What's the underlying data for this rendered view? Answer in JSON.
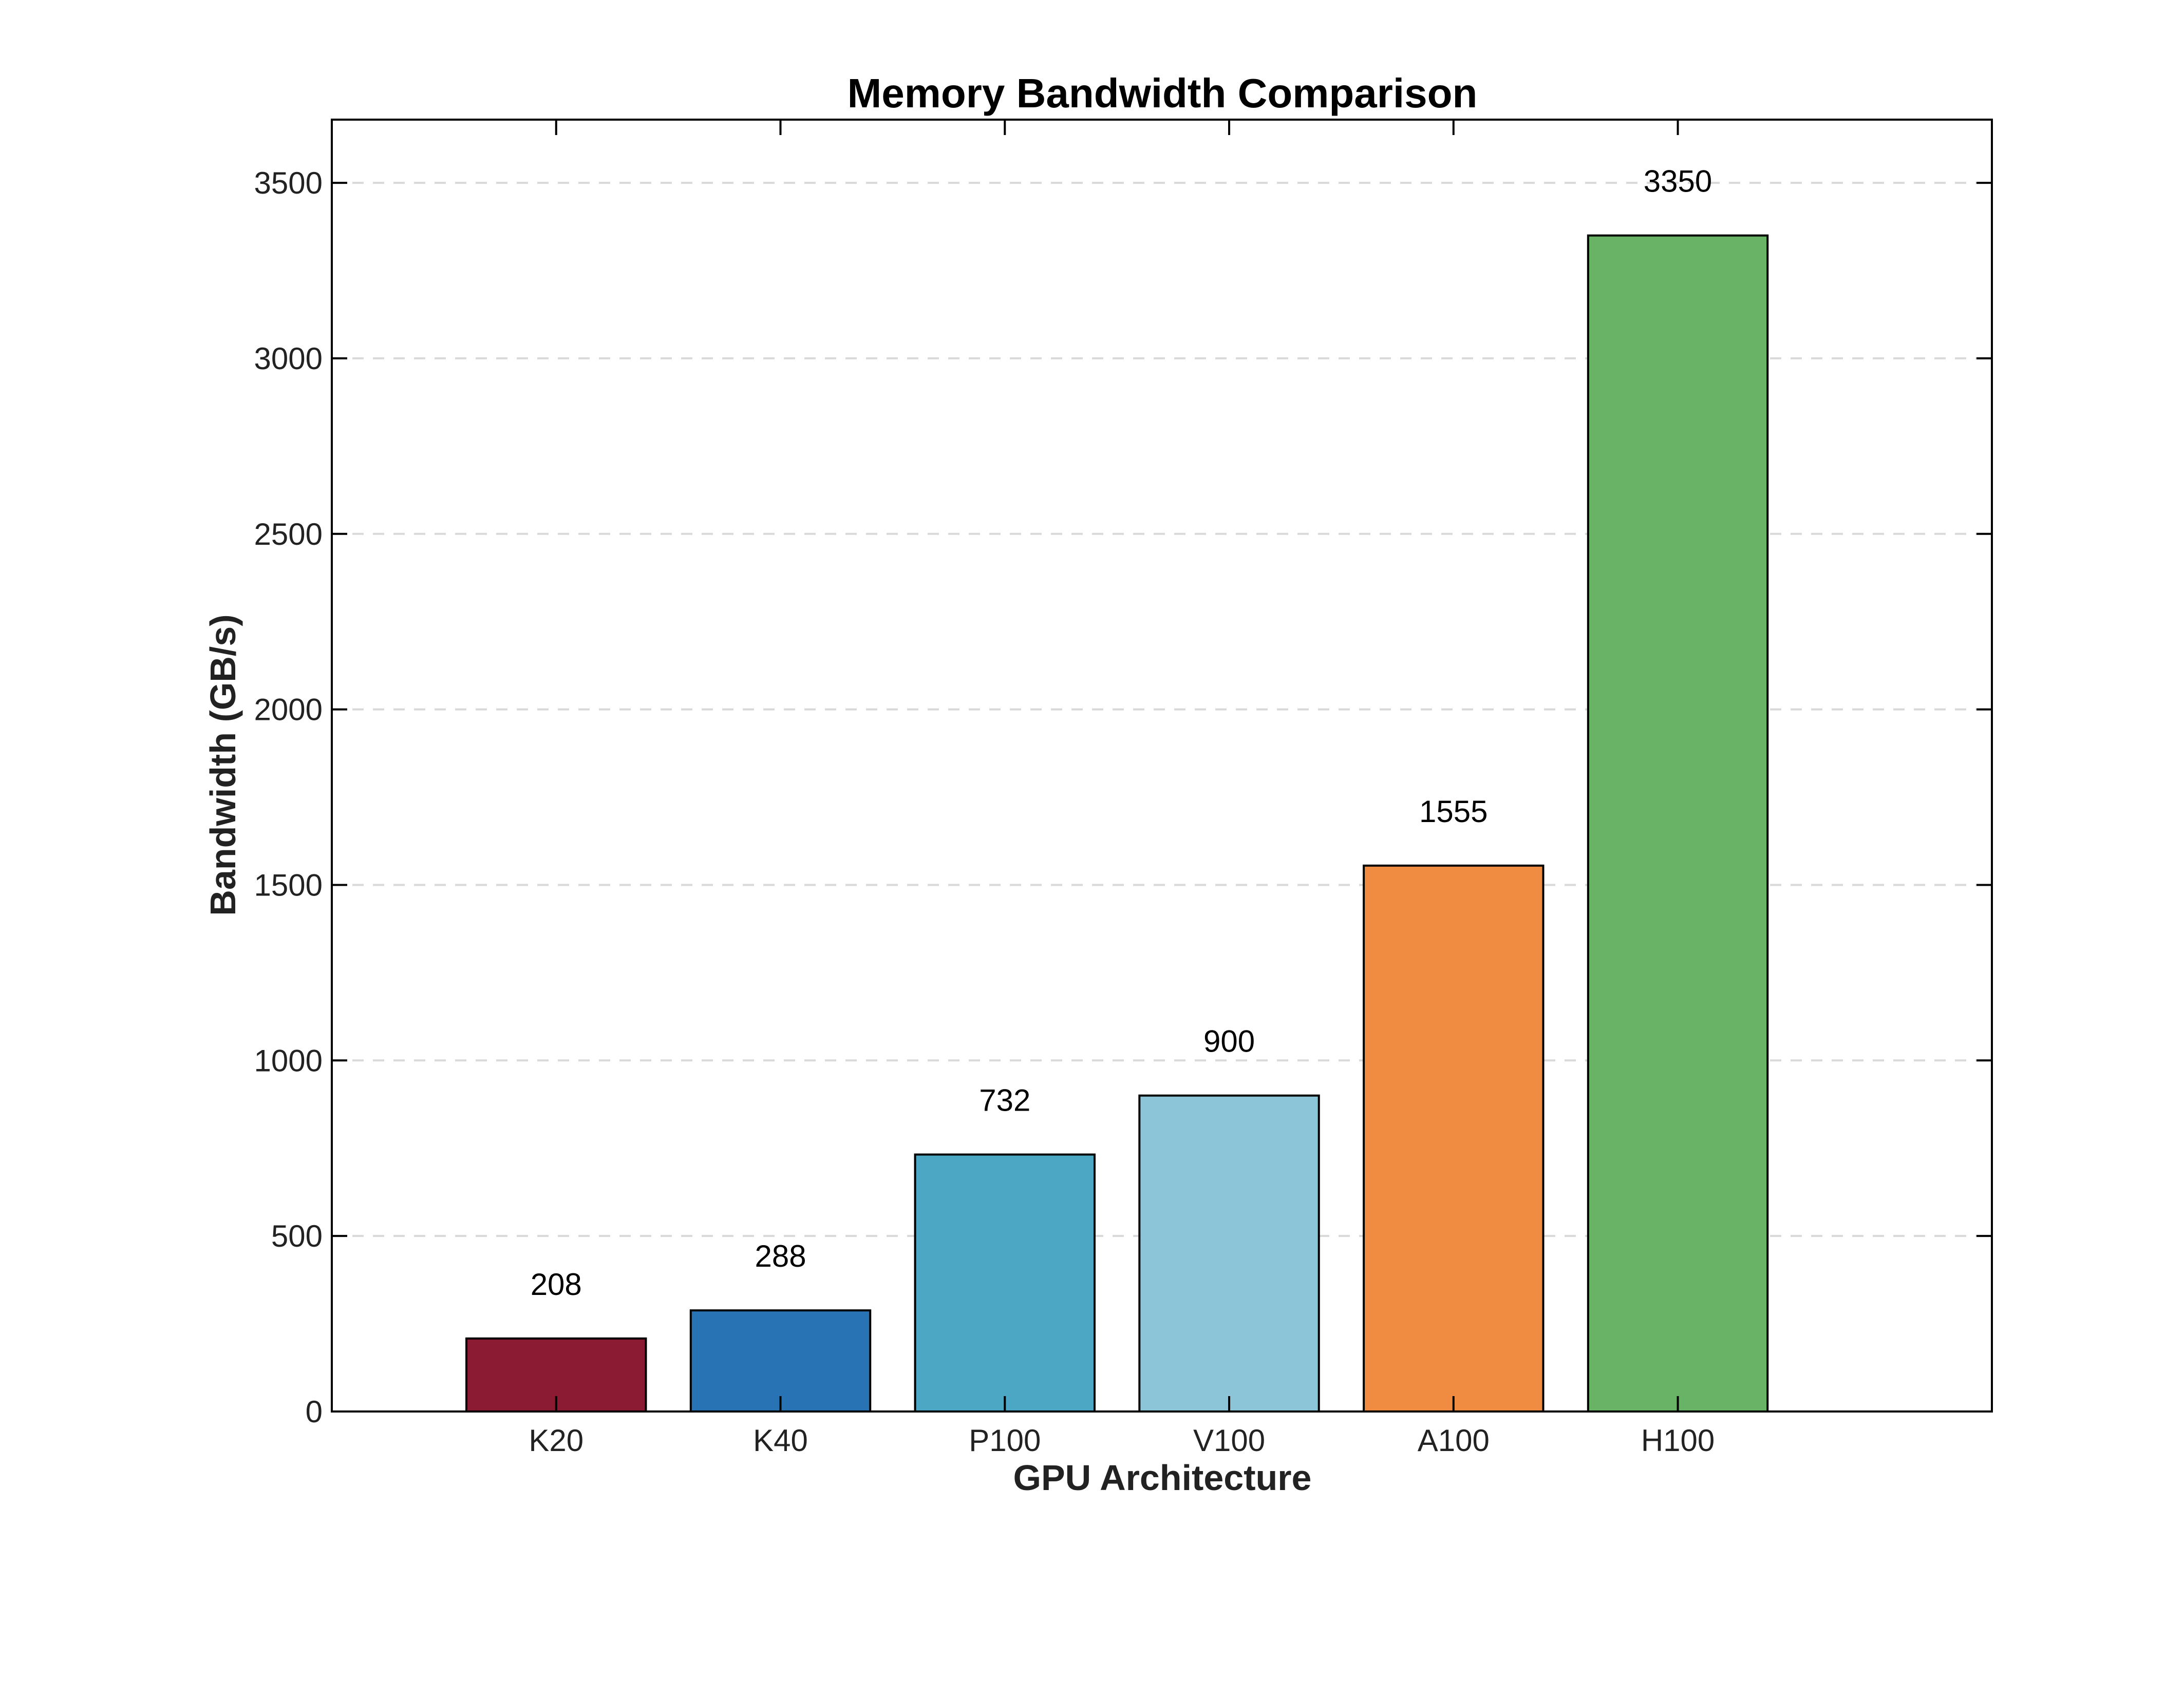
{
  "chart_data": {
    "type": "bar",
    "title": "Memory Bandwidth Comparison",
    "xlabel": "GPU Architecture",
    "ylabel": "Bandwidth (GB/s)",
    "categories": [
      "K20",
      "K40",
      "P100",
      "V100",
      "A100",
      "H100"
    ],
    "values": [
      208,
      288,
      732,
      900,
      1555,
      3350
    ],
    "data_labels": [
      "208",
      "288",
      "732",
      "900",
      "1555",
      "3350"
    ],
    "bar_colors": [
      "#8b1a33",
      "#2873b4",
      "#4ba7c3",
      "#8cc4d8",
      "#f08c42",
      "#68b366"
    ],
    "ylim": [
      0,
      3680
    ],
    "yticks": [
      0,
      500,
      1000,
      1500,
      2000,
      2500,
      3000,
      3500
    ],
    "ytick_labels": [
      "0",
      "500",
      "1000",
      "1500",
      "2000",
      "2500",
      "3000",
      "3500"
    ],
    "xlim": [
      0,
      7.4
    ],
    "grid": "y-dashed",
    "legend": "none"
  }
}
